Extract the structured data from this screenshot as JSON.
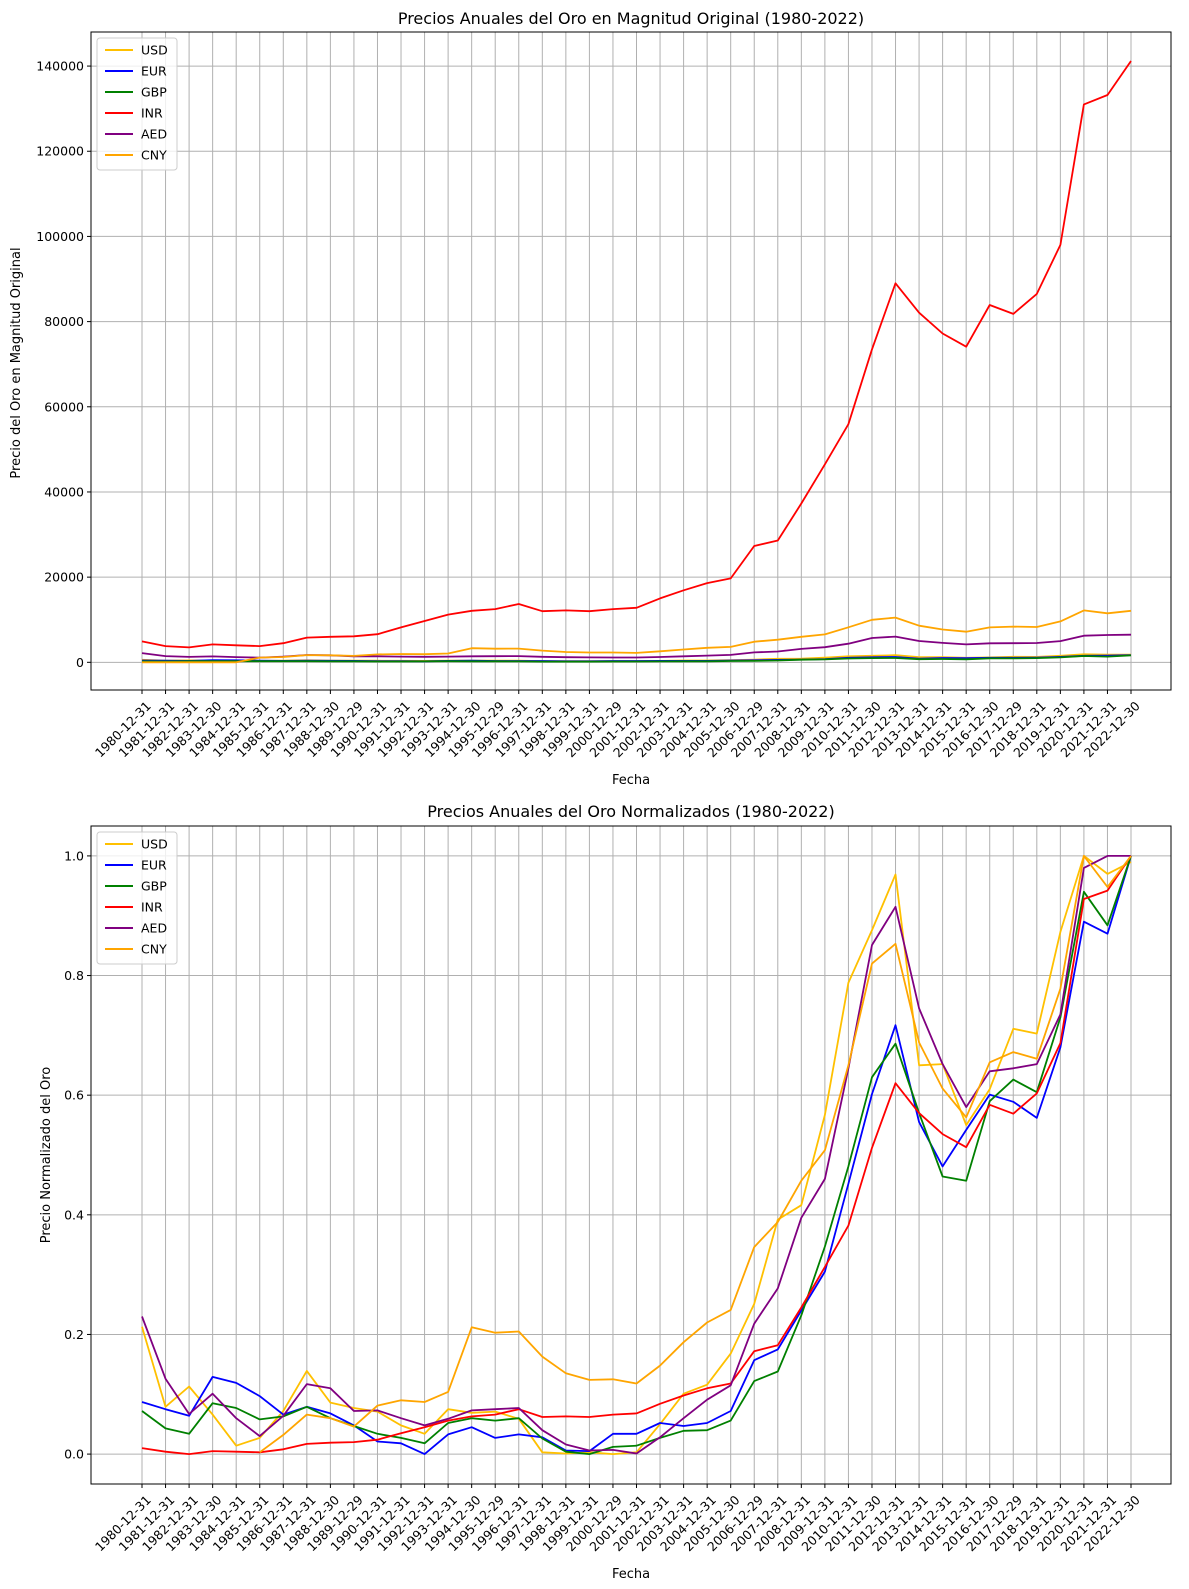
{
  "chart_data": [
    {
      "type": "line",
      "title": "Precios Anuales del Oro en Magnitud Original (1980-2022)",
      "xlabel": "Fecha",
      "ylabel": "Precio del Oro en Magnitud Original",
      "ylim": [
        -6500,
        148000
      ],
      "yticks": [
        0,
        20000,
        40000,
        60000,
        80000,
        100000,
        120000,
        140000
      ],
      "grid": true,
      "legend": "top-left",
      "x": [
        "1980-12-31",
        "1981-12-31",
        "1982-12-31",
        "1983-12-30",
        "1984-12-31",
        "1985-12-31",
        "1986-12-31",
        "1987-12-31",
        "1988-12-30",
        "1989-12-29",
        "1990-12-31",
        "1991-12-31",
        "1992-12-31",
        "1993-12-31",
        "1994-12-30",
        "1995-12-29",
        "1996-12-31",
        "1997-12-31",
        "1998-12-31",
        "1999-12-31",
        "2000-12-29",
        "2001-12-31",
        "2002-12-31",
        "2003-12-31",
        "2004-12-31",
        "2005-12-30",
        "2006-12-29",
        "2007-12-31",
        "2008-12-31",
        "2009-12-31",
        "2010-12-31",
        "2011-12-30",
        "2012-12-31",
        "2013-12-31",
        "2014-12-31",
        "2015-12-31",
        "2016-12-30",
        "2017-12-29",
        "2018-12-31",
        "2019-12-31",
        "2020-12-31",
        "2021-12-31",
        "2022-12-30"
      ],
      "series": [
        {
          "name": "USD",
          "color": "#ffc000",
          "values": [
            590,
            400,
            448,
            382,
            308,
            327,
            391,
            484,
            410,
            398,
            386,
            354,
            333,
            391,
            383,
            386,
            369,
            290,
            287,
            290,
            273,
            277,
            343,
            417,
            438,
            513,
            632,
            834,
            869,
            1087,
            1405,
            1531,
            1664,
            1204,
            1206,
            1060,
            1146,
            1291,
            1279,
            1523,
            1888,
            1805,
            1812
          ]
        },
        {
          "name": "EUR",
          "color": "#0000ff",
          "values": [
            432,
            370,
            334,
            502,
            477,
            412,
            337,
            375,
            348,
            333,
            283,
            275,
            228,
            336,
            370,
            300,
            321,
            305,
            245,
            233,
            318,
            317,
            344,
            326,
            337,
            438,
            482,
            569,
            638,
            759,
            1060,
            1181,
            1258,
            875,
            1005,
            970,
            1072,
            1058,
            1100,
            1270,
            1540,
            1580,
            1700
          ]
        },
        {
          "name": "GBP",
          "color": "#008000",
          "values": [
            247,
            210,
            262,
            261,
            264,
            251,
            264,
            258,
            245,
            234,
            202,
            200,
            220,
            251,
            243,
            248,
            226,
            178,
            169,
            175,
            183,
            195,
            210,
            230,
            234,
            298,
            322,
            418,
            603,
            677,
            908,
            988,
            1025,
            731,
            782,
            719,
            951,
            922,
            1000,
            1150,
            1490,
            1337,
            1620
          ]
        },
        {
          "name": "INR",
          "color": "#ff0000",
          "values": [
            4900,
            3800,
            3500,
            4200,
            4000,
            3800,
            4500,
            5800,
            6000,
            6100,
            6600,
            8200,
            9700,
            11200,
            12100,
            12500,
            13700,
            12000,
            12200,
            12000,
            12500,
            12800,
            15000,
            16900,
            18600,
            19700,
            27300,
            28600,
            37300,
            46500,
            55900,
            73500,
            89000,
            82100,
            77200,
            74100,
            83900,
            81800,
            86500,
            98000,
            131000,
            133200,
            141200
          ]
        },
        {
          "name": "AED",
          "color": "#800080",
          "values": [
            2170,
            1470,
            1280,
            1380,
            1230,
            1100,
            1340,
            1710,
            1650,
            1390,
            1410,
            1340,
            1290,
            1350,
            1420,
            1430,
            1450,
            1300,
            1200,
            1150,
            1130,
            1140,
            1250,
            1410,
            1580,
            1750,
            2320,
            2550,
            3150,
            3550,
            4380,
            5710,
            6030,
            5000,
            4560,
            4200,
            4470,
            4480,
            4530,
            4980,
            6250,
            6410,
            6480
          ]
        },
        {
          "name": "CNY",
          "color": "#ffa500",
          "values": [
            0,
            0,
            0,
            0,
            0,
            1100,
            1250,
            1700,
            1650,
            1500,
            1850,
            1950,
            1900,
            2060,
            3320,
            3200,
            3220,
            2750,
            2420,
            2310,
            2310,
            2220,
            2580,
            3020,
            3400,
            3610,
            4850,
            5300,
            6000,
            6560,
            8230,
            9990,
            10500,
            8600,
            7700,
            7200,
            8210,
            8390,
            8300,
            9600,
            12200,
            11500,
            12100
          ]
        }
      ]
    },
    {
      "type": "line",
      "title": "Precios Anuales del Oro Normalizados (1980-2022)",
      "xlabel": "Fecha",
      "ylabel": "Precio Normalizado del Oro",
      "ylim": [
        -0.05,
        1.05
      ],
      "yticks": [
        0.0,
        0.2,
        0.4,
        0.6,
        0.8,
        1.0
      ],
      "grid": true,
      "legend": "top-left",
      "x": [
        "1980-12-31",
        "1981-12-31",
        "1982-12-31",
        "1983-12-30",
        "1984-12-31",
        "1985-12-31",
        "1986-12-31",
        "1987-12-31",
        "1988-12-30",
        "1989-12-29",
        "1990-12-31",
        "1991-12-31",
        "1992-12-31",
        "1993-12-31",
        "1994-12-30",
        "1995-12-29",
        "1996-12-31",
        "1997-12-31",
        "1998-12-31",
        "1999-12-31",
        "2000-12-29",
        "2001-12-31",
        "2002-12-31",
        "2003-12-31",
        "2004-12-31",
        "2005-12-30",
        "2006-12-29",
        "2007-12-31",
        "2008-12-31",
        "2009-12-31",
        "2010-12-31",
        "2011-12-30",
        "2012-12-31",
        "2013-12-31",
        "2014-12-31",
        "2015-12-31",
        "2016-12-30",
        "2017-12-29",
        "2018-12-31",
        "2019-12-31",
        "2020-12-31",
        "2021-12-31",
        "2022-12-30"
      ],
      "series": [
        {
          "name": "USD",
          "color": "#ffc000",
          "values": [
            0.213,
            0.079,
            0.113,
            0.066,
            0.014,
            0.027,
            0.072,
            0.139,
            0.086,
            0.077,
            0.071,
            0.048,
            0.034,
            0.075,
            0.069,
            0.071,
            0.059,
            0.003,
            0.001,
            0.003,
            0.0,
            0.003,
            0.05,
            0.101,
            0.116,
            0.168,
            0.251,
            0.392,
            0.416,
            0.567,
            0.788,
            0.876,
            0.969,
            0.65,
            0.652,
            0.55,
            0.61,
            0.711,
            0.703,
            0.873,
            1.0,
            0.97,
            0.99
          ]
        },
        {
          "name": "EUR",
          "color": "#0000ff",
          "values": [
            0.087,
            0.075,
            0.064,
            0.129,
            0.119,
            0.097,
            0.066,
            0.079,
            0.068,
            0.048,
            0.021,
            0.018,
            0.0,
            0.033,
            0.045,
            0.027,
            0.033,
            0.028,
            0.006,
            0.005,
            0.034,
            0.034,
            0.052,
            0.047,
            0.052,
            0.072,
            0.157,
            0.175,
            0.24,
            0.305,
            0.452,
            0.602,
            0.717,
            0.555,
            0.481,
            0.542,
            0.601,
            0.589,
            0.562,
            0.68,
            0.89,
            0.87,
            1.0
          ]
        },
        {
          "name": "GBP",
          "color": "#008000",
          "values": [
            0.072,
            0.043,
            0.034,
            0.085,
            0.077,
            0.058,
            0.063,
            0.079,
            0.06,
            0.047,
            0.034,
            0.027,
            0.018,
            0.052,
            0.06,
            0.056,
            0.06,
            0.026,
            0.004,
            0.0,
            0.012,
            0.014,
            0.027,
            0.039,
            0.04,
            0.056,
            0.122,
            0.138,
            0.232,
            0.347,
            0.481,
            0.63,
            0.686,
            0.57,
            0.464,
            0.457,
            0.59,
            0.626,
            0.605,
            0.73,
            0.94,
            0.884,
            1.0
          ]
        },
        {
          "name": "INR",
          "color": "#ff0000",
          "values": [
            0.01,
            0.004,
            0.0,
            0.005,
            0.004,
            0.003,
            0.008,
            0.017,
            0.019,
            0.02,
            0.024,
            0.035,
            0.045,
            0.056,
            0.063,
            0.066,
            0.075,
            0.062,
            0.063,
            0.062,
            0.066,
            0.068,
            0.084,
            0.098,
            0.11,
            0.118,
            0.172,
            0.182,
            0.245,
            0.313,
            0.382,
            0.512,
            0.62,
            0.57,
            0.535,
            0.513,
            0.584,
            0.569,
            0.603,
            0.687,
            0.928,
            0.942,
            1.0
          ]
        },
        {
          "name": "AED",
          "color": "#800080",
          "values": [
            0.23,
            0.126,
            0.067,
            0.101,
            0.06,
            0.03,
            0.064,
            0.117,
            0.11,
            0.072,
            0.073,
            0.06,
            0.048,
            0.059,
            0.073,
            0.075,
            0.077,
            0.04,
            0.016,
            0.006,
            0.007,
            0.001,
            0.028,
            0.06,
            0.091,
            0.115,
            0.218,
            0.277,
            0.395,
            0.46,
            0.645,
            0.851,
            0.915,
            0.745,
            0.652,
            0.58,
            0.64,
            0.645,
            0.652,
            0.735,
            0.98,
            1.0,
            1.0
          ]
        },
        {
          "name": "CNY",
          "color": "#ffa500",
          "values": [
            null,
            null,
            null,
            null,
            null,
            0.003,
            0.032,
            0.066,
            0.06,
            0.046,
            0.081,
            0.09,
            0.087,
            0.104,
            0.212,
            0.203,
            0.205,
            0.163,
            0.135,
            0.124,
            0.125,
            0.118,
            0.148,
            0.187,
            0.22,
            0.241,
            0.346,
            0.388,
            0.457,
            0.508,
            0.65,
            0.82,
            0.853,
            0.688,
            0.611,
            0.563,
            0.655,
            0.672,
            0.661,
            0.778,
            1.0,
            0.948,
            1.0
          ]
        }
      ]
    }
  ]
}
